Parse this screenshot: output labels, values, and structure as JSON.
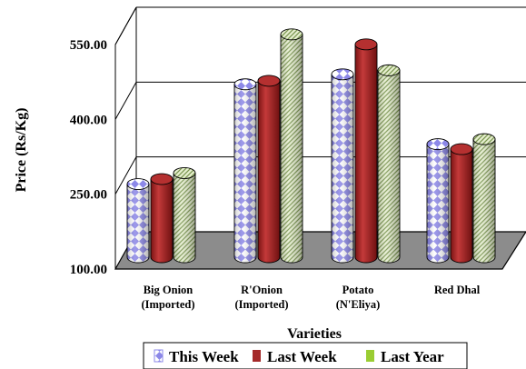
{
  "chart_data": {
    "type": "bar",
    "title": "",
    "xlabel": "Varieties",
    "ylabel": "Price (Rs/Kg)",
    "ylim": [
      100,
      550
    ],
    "yticks": [
      "100.00",
      "250.00",
      "400.00",
      "550.00"
    ],
    "grid": true,
    "legend_position": "bottom",
    "categories": [
      [
        "Big Onion",
        "(Imported)"
      ],
      [
        "R'Onion",
        "(Imported)"
      ],
      [
        "Potato",
        "(N'Eliya)"
      ],
      [
        "Red Dhal"
      ]
    ],
    "series": [
      {
        "name": "This Week",
        "values": [
          212,
          412,
          432,
          292
        ],
        "color": "#c9c6f2",
        "pattern": "diamond-check"
      },
      {
        "name": "Last Week",
        "values": [
          222,
          419,
          492,
          282
        ],
        "color": "#a52a2a",
        "pattern": "solid"
      },
      {
        "name": "Last Year",
        "values": [
          234,
          512,
          440,
          302
        ],
        "color": "#c8dca0",
        "pattern": "diagonal-hatch"
      }
    ]
  }
}
